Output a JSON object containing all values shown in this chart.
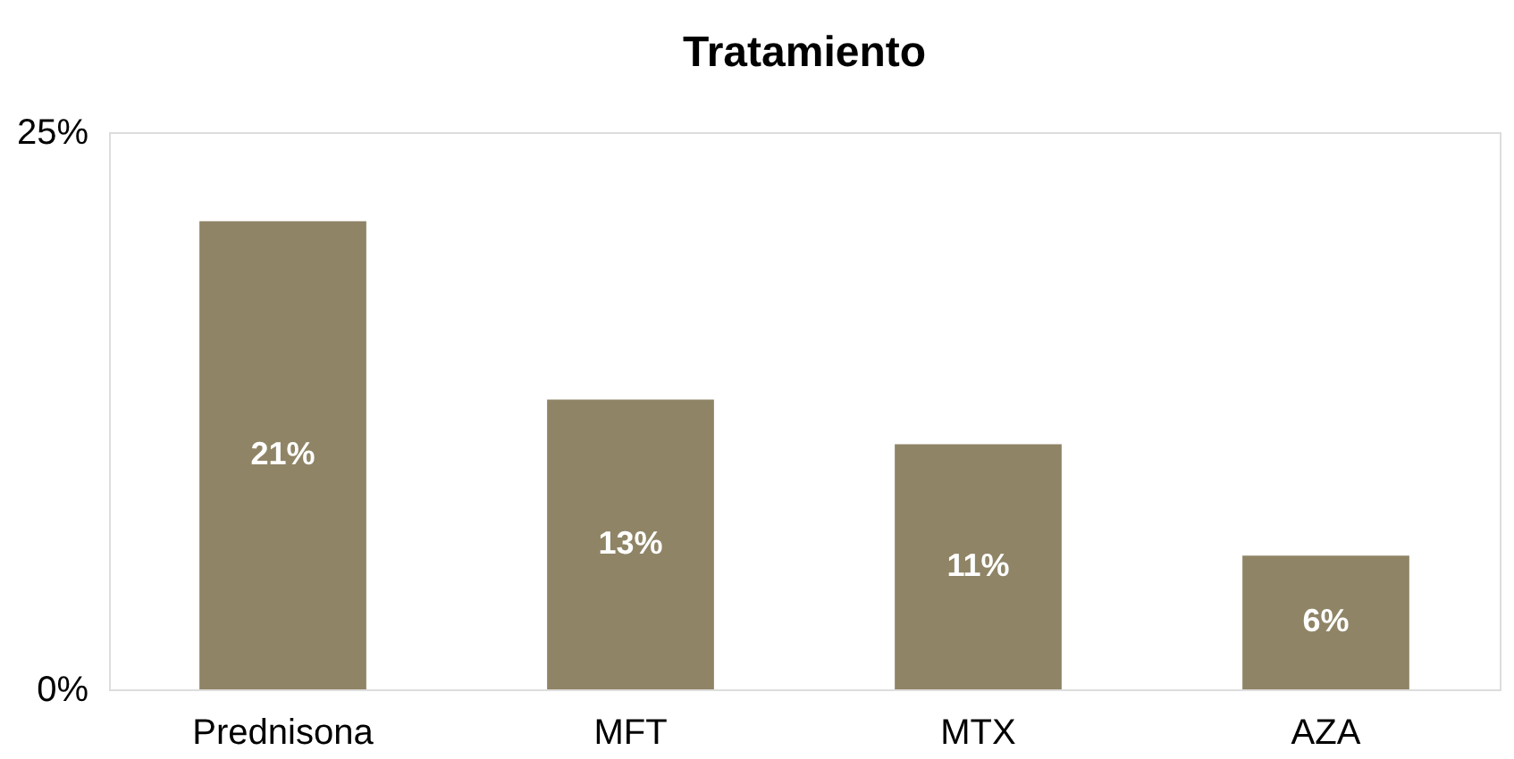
{
  "chart_data": {
    "type": "bar",
    "title": "Tratamiento",
    "categories": [
      "Prednisona",
      "MFT",
      "MTX",
      "AZA"
    ],
    "values": [
      21,
      13,
      11,
      6
    ],
    "value_labels": [
      "21%",
      "13%",
      "11%",
      "6%"
    ],
    "color": "#8f8466",
    "ylim": [
      0,
      25
    ],
    "yticks": [
      {
        "value": 0,
        "label": "0%"
      },
      {
        "value": 25,
        "label": "25%"
      }
    ],
    "grid": false
  }
}
